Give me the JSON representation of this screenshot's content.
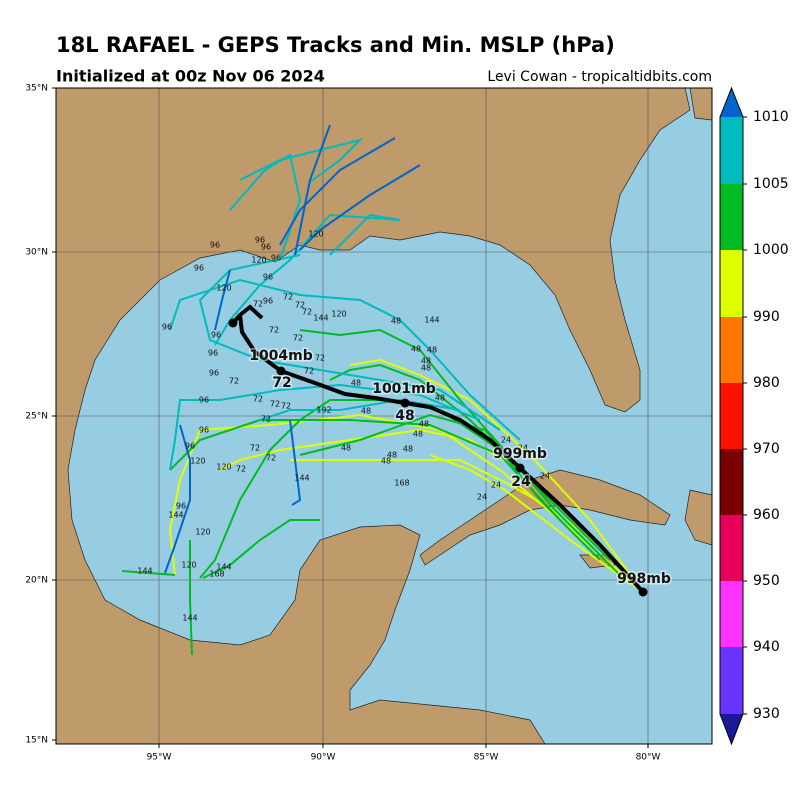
{
  "header": {
    "title": "18L RAFAEL - GEPS Tracks and Min. MSLP (hPa)",
    "subtitle": "Initialized at 00z Nov 06 2024",
    "credit": "Levi Cowan - tropicaltidbits.com"
  },
  "map": {
    "lat_labels": [
      "35°N",
      "30°N",
      "25°N",
      "20°N",
      "15°N"
    ],
    "lon_labels": [
      "95°W",
      "90°W",
      "85°W",
      "80°W"
    ]
  },
  "colorbar": {
    "labels": [
      "930",
      "940",
      "950",
      "960",
      "970",
      "980",
      "990",
      "1000",
      "1005",
      "1010"
    ],
    "colors": [
      "#1a1a99",
      "#6633ff",
      "#ff33ff",
      "#e6005c",
      "#7a0000",
      "#ff1100",
      "#ff7700",
      "#ddff00",
      "#00bb22",
      "#00bbbb",
      "#0066cc"
    ]
  },
  "mean_track": {
    "pressure_labels": [
      "998mb",
      "999mb",
      "1001mb",
      "1004mb"
    ],
    "hour_labels": [
      "24",
      "48",
      "72"
    ]
  },
  "member_labels": [
    "96",
    "96",
    "96",
    "120",
    "96",
    "96",
    "96",
    "120",
    "72",
    "96",
    "72",
    "72",
    "72",
    "144",
    "120",
    "96",
    "72",
    "96",
    "72",
    "96",
    "72",
    "72",
    "96",
    "72",
    "48",
    "96",
    "72",
    "72",
    "72",
    "192",
    "72",
    "48",
    "96",
    "72",
    "96",
    "72",
    "120",
    "120",
    "72",
    "48",
    "48",
    "48",
    "48",
    "144",
    "168",
    "48",
    "144",
    "48",
    "48",
    "48",
    "48",
    "48",
    "48",
    "48",
    "24",
    "24",
    "24",
    "24",
    "24",
    "96",
    "144",
    "120",
    "144",
    "120",
    "144",
    "168",
    "144",
    "120"
  ]
}
